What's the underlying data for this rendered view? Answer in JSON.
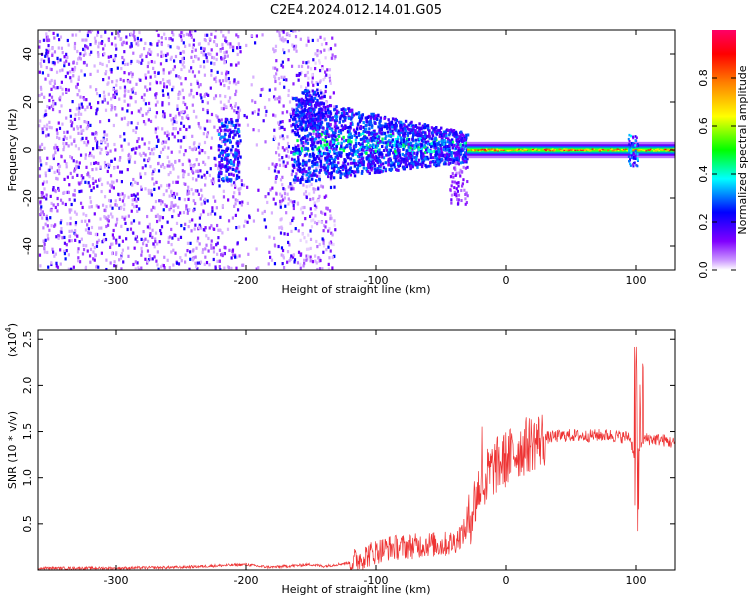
{
  "title": "C2E4.2024.012.14.01.G05",
  "chart_data": [
    {
      "type": "heatmap",
      "xlabel": "Height of straight line (km)",
      "ylabel": "Frequency (Hz)",
      "xlim": [
        -360,
        130
      ],
      "ylim": [
        -50,
        50
      ],
      "xticks": [
        -300,
        -200,
        -100,
        0,
        100
      ],
      "yticks": [
        40,
        20,
        0,
        -20,
        -40
      ],
      "colorbar": {
        "label": "Normalized spectral amplitude",
        "range": [
          0,
          1
        ],
        "ticks": [
          "0.0",
          "0.2",
          "0.4",
          "0.6",
          "0.8"
        ],
        "colors": [
          "#ffffff",
          "#8000ff",
          "#0000ff",
          "#00ffff",
          "#00ff00",
          "#ffff00",
          "#ff8000",
          "#ff0000",
          "#ff0066"
        ]
      },
      "regions": [
        {
          "x": [
            -360,
            -135
          ],
          "y": [
            -50,
            50
          ],
          "amp": 0.15,
          "desc": "scattered noise"
        },
        {
          "x": [
            -220,
            -205
          ],
          "y": [
            -12,
            12
          ],
          "amp": 0.3
        },
        {
          "x": [
            -160,
            -30
          ],
          "y": [
            -15,
            20
          ],
          "amp": 0.4
        },
        {
          "x": [
            -30,
            130
          ],
          "y": [
            -2,
            2
          ],
          "amp": 0.6
        },
        {
          "x": [
            95,
            100
          ],
          "y": [
            -8,
            8
          ],
          "amp": 0.4
        }
      ]
    },
    {
      "type": "line",
      "xlabel": "Height of straight line (km)",
      "ylabel": "SNR (10 * v/v)",
      "yscale_label": "(x10",
      "yscale_exp": "4",
      "xlim": [
        -360,
        130
      ],
      "ylim": [
        0,
        2.6
      ],
      "xticks": [
        -300,
        -200,
        -100,
        0,
        100
      ],
      "yticks": [
        "0.5",
        "1.0",
        "1.5",
        "2.0",
        "2.5"
      ],
      "color": "#ee3333",
      "series": [
        {
          "x": [
            -360,
            -300,
            -250,
            -200,
            -190,
            -180,
            -150,
            -140,
            -130,
            -120,
            -110,
            -100,
            -90,
            -80,
            -70,
            -60,
            -50,
            -40,
            -30,
            -25,
            -20,
            -15,
            -10,
            -5,
            0,
            10,
            20,
            30,
            40,
            50,
            60,
            70,
            80,
            90,
            95,
            100,
            105,
            110,
            120,
            130
          ],
          "y": [
            0.02,
            0.02,
            0.03,
            0.06,
            0.04,
            0.03,
            0.06,
            0.04,
            0.06,
            0.08,
            0.14,
            0.2,
            0.24,
            0.25,
            0.26,
            0.28,
            0.27,
            0.3,
            0.45,
            0.7,
            0.9,
            1.0,
            1.1,
            1.15,
            1.2,
            1.3,
            1.38,
            1.43,
            1.45,
            1.46,
            1.45,
            1.46,
            1.46,
            1.44,
            1.45,
            1.2,
            1.42,
            1.42,
            1.41,
            1.37
          ]
        }
      ]
    }
  ]
}
